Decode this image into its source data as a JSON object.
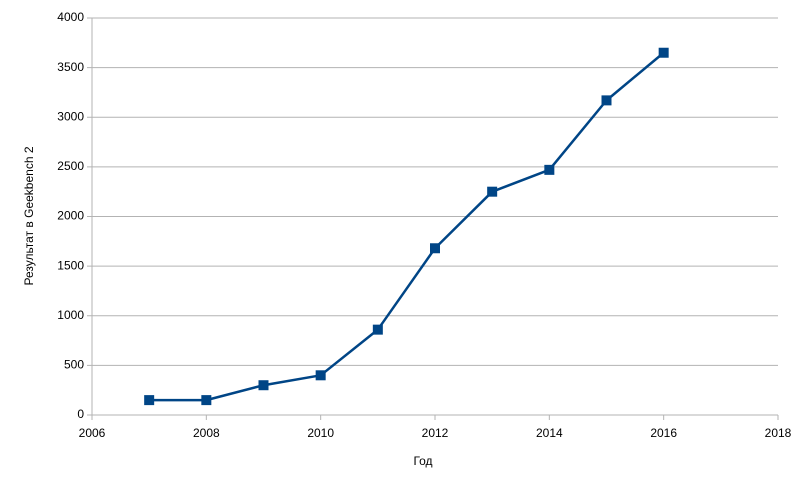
{
  "chart_data": {
    "type": "line",
    "x_label": "Год",
    "y_label": "Результат в Geekbench 2",
    "x": [
      2007,
      2008,
      2009,
      2010,
      2011,
      2012,
      2013,
      2014,
      2015,
      2016
    ],
    "series": [
      {
        "name": "Geekbench 2",
        "color": "#004586",
        "values": [
          150,
          150,
          300,
          400,
          860,
          1680,
          2250,
          2470,
          3170,
          3650
        ]
      }
    ],
    "xlim": [
      2006,
      2018
    ],
    "xticks": [
      2006,
      2008,
      2010,
      2012,
      2014,
      2016,
      2018
    ],
    "ylim": [
      0,
      4000
    ],
    "yticks": [
      0,
      500,
      1000,
      1500,
      2000,
      2500,
      3000,
      3500,
      4000
    ],
    "grid": true,
    "legend": false
  }
}
